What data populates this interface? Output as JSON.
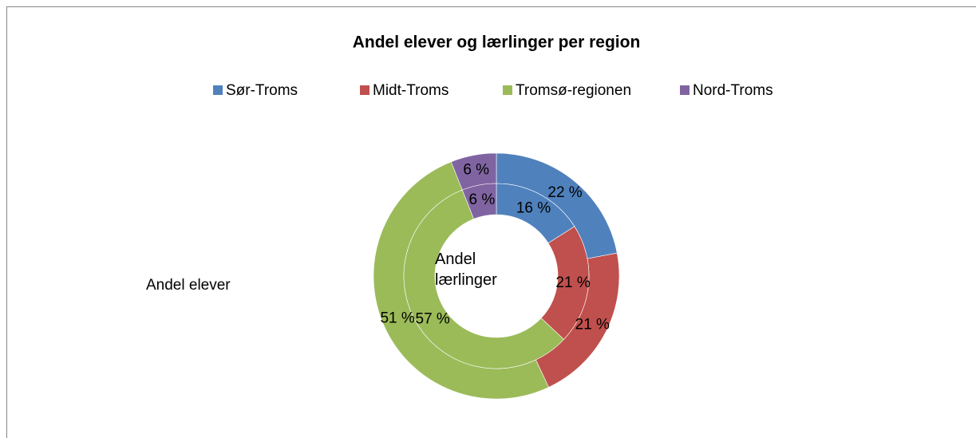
{
  "chart_data": {
    "type": "doughnut",
    "title": "Andel elever og lærlinger per region",
    "categories": [
      "Sør-Troms",
      "Midt-Troms",
      "Tromsø-regionen",
      "Nord-Troms"
    ],
    "colors": [
      "#4f81bd",
      "#c0504d",
      "#9bbb59",
      "#8064a2"
    ],
    "legend": "top",
    "series": [
      {
        "name": "Andel elever",
        "values": [
          22,
          21,
          51,
          6
        ],
        "value_labels": [
          "22 %",
          "21 %",
          "51 %",
          "6 %"
        ]
      },
      {
        "name": "Andel lærlinger",
        "values": [
          16,
          21,
          57,
          6
        ],
        "value_labels": [
          "16 %",
          "21 %",
          "57 %",
          "6 %"
        ]
      }
    ]
  }
}
